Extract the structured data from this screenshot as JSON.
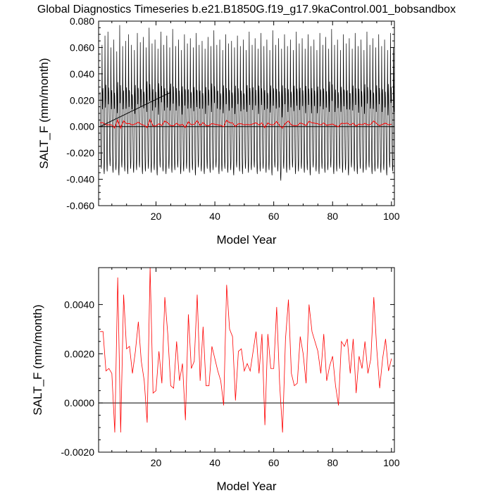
{
  "title": "Global Diagnostics Timeseries b.e21.B1850G.f19_g17.9kaControl.001_bobsandbox",
  "chart_data": [
    {
      "type": "line",
      "xlabel": "Model Year",
      "ylabel": "SALT_F (mm/month)",
      "xlim": [
        0.5,
        101
      ],
      "ylim": [
        -0.06,
        0.08
      ],
      "xticks": [
        20,
        40,
        60,
        80,
        100
      ],
      "xtick_labels": [
        "20",
        "40",
        "60",
        "80",
        "100"
      ],
      "yticks": [
        -0.06,
        -0.04,
        -0.02,
        0.0,
        0.02,
        0.04,
        0.06,
        0.08
      ],
      "ytick_labels": [
        "-0.060",
        "-0.040",
        "-0.020",
        "0.000",
        "0.020",
        "0.040",
        "0.060",
        "0.080"
      ],
      "reference_line_y": 0.0,
      "trend_line": {
        "x": [
          1,
          25
        ],
        "y": [
          0.0,
          0.026
        ]
      },
      "series": [
        {
          "color": "#000000",
          "sampling": "monthly",
          "x_start": 1.0,
          "x_step": 0.0833333,
          "annual_maxima": [
            0.062,
            0.069,
            0.072,
            0.06,
            0.066,
            0.057,
            0.077,
            0.061,
            0.065,
            0.07,
            0.062,
            0.058,
            0.071,
            0.064,
            0.068,
            0.06,
            0.075,
            0.063,
            0.066,
            0.059,
            0.072,
            0.062,
            0.069,
            0.06,
            0.074,
            0.061,
            0.066,
            0.058,
            0.07,
            0.063,
            0.067,
            0.06,
            0.071,
            0.062,
            0.065,
            0.059,
            0.068,
            0.061,
            0.073,
            0.062,
            0.066,
            0.058,
            0.07,
            0.063,
            0.065,
            0.06,
            0.069,
            0.061,
            0.066,
            0.058,
            0.072,
            0.062,
            0.067,
            0.059,
            0.071,
            0.061,
            0.066,
            0.058,
            0.073,
            0.062,
            0.067,
            0.059,
            0.07,
            0.061,
            0.066,
            0.058,
            0.072,
            0.063,
            0.067,
            0.059,
            0.07,
            0.061,
            0.066,
            0.058,
            0.071,
            0.062,
            0.068,
            0.059,
            0.074,
            0.062,
            0.066,
            0.058,
            0.07,
            0.063,
            0.067,
            0.059,
            0.071,
            0.061,
            0.066,
            0.058,
            0.072,
            0.062,
            0.067,
            0.06,
            0.07,
            0.061,
            0.066,
            0.058,
            0.071,
            0.06
          ],
          "annual_minima": [
            -0.032,
            -0.036,
            -0.034,
            -0.03,
            -0.035,
            -0.033,
            -0.037,
            -0.031,
            -0.034,
            -0.036,
            -0.032,
            -0.035,
            -0.033,
            -0.031,
            -0.036,
            -0.034,
            -0.032,
            -0.035,
            -0.033,
            -0.037,
            -0.031,
            -0.034,
            -0.036,
            -0.032,
            -0.035,
            -0.033,
            -0.031,
            -0.036,
            -0.034,
            -0.032,
            -0.035,
            -0.033,
            -0.037,
            -0.031,
            -0.034,
            -0.036,
            -0.032,
            -0.035,
            -0.033,
            -0.031,
            -0.036,
            -0.034,
            -0.032,
            -0.035,
            -0.033,
            -0.037,
            -0.031,
            -0.034,
            -0.036,
            -0.032,
            -0.035,
            -0.033,
            -0.031,
            -0.036,
            -0.034,
            -0.032,
            -0.035,
            -0.033,
            -0.037,
            -0.031,
            -0.034,
            -0.041,
            -0.032,
            -0.035,
            -0.033,
            -0.031,
            -0.036,
            -0.034,
            -0.032,
            -0.035,
            -0.033,
            -0.037,
            -0.031,
            -0.034,
            -0.036,
            -0.032,
            -0.035,
            -0.033,
            -0.031,
            -0.036,
            -0.034,
            -0.032,
            -0.035,
            -0.033,
            -0.037,
            -0.031,
            -0.034,
            -0.036,
            -0.032,
            -0.035,
            -0.033,
            -0.031,
            -0.036,
            -0.034,
            -0.032,
            -0.035,
            -0.033,
            -0.037,
            -0.031,
            -0.034
          ]
        },
        {
          "color": "#ff0000",
          "sampling": "annual",
          "uses_bottom_panel_values": true
        }
      ]
    },
    {
      "type": "line",
      "xlabel": "Model Year",
      "ylabel": "SALT_F (mm/month)",
      "xlim": [
        0.5,
        101
      ],
      "ylim": [
        -0.002,
        0.0055
      ],
      "xticks": [
        20,
        40,
        60,
        80,
        100
      ],
      "xtick_labels": [
        "20",
        "40",
        "60",
        "80",
        "100"
      ],
      "yticks": [
        -0.002,
        0.0,
        0.002,
        0.004
      ],
      "ytick_labels": [
        "-0.0020",
        "0.0000",
        "0.0020",
        "0.0040"
      ],
      "reference_line_y": 0.0,
      "series": [
        {
          "color": "#ff0000",
          "x_start": 1,
          "x_step": 1,
          "values": [
            0.0029,
            0.0029,
            0.0013,
            0.0014,
            0.0012,
            -0.0012,
            0.0051,
            -0.0012,
            0.0044,
            0.0022,
            0.0023,
            0.0012,
            0.0021,
            0.0033,
            0.0017,
            0.0009,
            -0.0008,
            0.0055,
            0.0004,
            0.0005,
            0.0021,
            0.0008,
            0.0043,
            0.0028,
            0.0007,
            0.0006,
            0.0025,
            0.0009,
            0.0016,
            -0.0007,
            0.0036,
            0.0014,
            0.0017,
            0.0044,
            0.0009,
            0.0031,
            0.0007,
            0.0007,
            0.0023,
            0.0018,
            0.0013,
            0.0009,
            -0.0001,
            0.0048,
            0.003,
            0.0027,
            0.0001,
            0.0021,
            0.0022,
            0.0013,
            0.0016,
            0.0013,
            0.0021,
            0.0029,
            0.0012,
            0.0028,
            -0.0009,
            0.0028,
            0.0014,
            0.0014,
            0.0039,
            0.0008,
            -0.0012,
            0.0026,
            0.0042,
            0.0012,
            0.0007,
            0.0008,
            0.0027,
            0.002,
            0.0008,
            0.004,
            0.0029,
            0.0025,
            0.0021,
            0.0012,
            0.0028,
            0.0009,
            0.0015,
            0.0019,
            0.0007,
            -0.0001,
            0.0025,
            0.0023,
            0.0026,
            0.0012,
            0.0026,
            0.0004,
            0.0019,
            0.0014,
            0.0025,
            0.0012,
            0.0018,
            0.0043,
            0.0022,
            0.0006,
            0.0018,
            0.0026,
            0.0013,
            0.0018
          ]
        }
      ]
    }
  ]
}
